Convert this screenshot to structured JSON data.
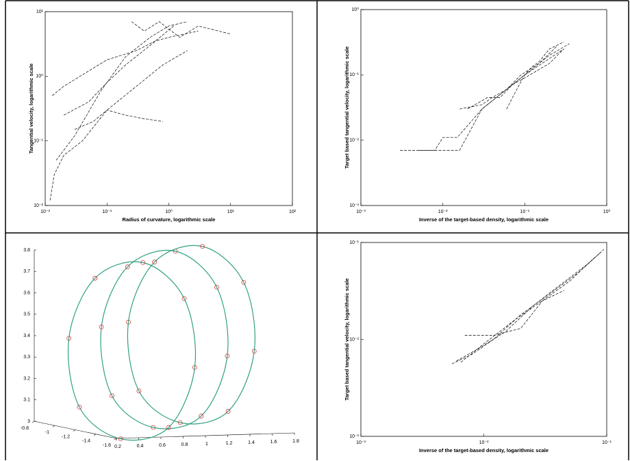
{
  "chart_data": [
    {
      "type": "line",
      "log_x": true,
      "log_y": true,
      "color": "#000000",
      "xlabel": "Radius of curvature, logarithmic scale",
      "ylabel": "Tangential velocity, logarithmic scale",
      "xlim": [
        0.01,
        100
      ],
      "ylim": [
        0.01,
        10
      ],
      "xticks": [
        {
          "value": 0.01,
          "label": "10⁻²"
        },
        {
          "value": 0.1,
          "label": "10⁻¹"
        },
        {
          "value": 1,
          "label": "10⁰"
        },
        {
          "value": 10,
          "label": "10¹"
        },
        {
          "value": 100,
          "label": "10²"
        }
      ],
      "yticks": [
        {
          "value": 0.01,
          "label": "10⁻²"
        },
        {
          "value": 0.1,
          "label": "10⁻¹"
        },
        {
          "value": 1,
          "label": "10⁰"
        },
        {
          "value": 10,
          "label": "10¹"
        }
      ],
      "series": [
        {
          "x": [
            0.012,
            0.014,
            0.02,
            0.04,
            0.1,
            0.3,
            0.8,
            2
          ],
          "values": [
            0.012,
            0.03,
            0.06,
            0.1,
            0.3,
            0.7,
            1.5,
            2.5
          ]
        },
        {
          "x": [
            0.013,
            0.02,
            0.05,
            0.1,
            0.3,
            0.6,
            1,
            3
          ],
          "values": [
            0.5,
            0.7,
            1.2,
            1.8,
            2.5,
            3.5,
            4,
            5
          ]
        },
        {
          "x": [
            0.02,
            0.05,
            0.1,
            0.2,
            0.5,
            1.2
          ],
          "values": [
            0.25,
            0.4,
            0.8,
            1.5,
            3,
            6
          ]
        },
        {
          "x": [
            0.03,
            0.06,
            0.1,
            0.2,
            0.4,
            0.8
          ],
          "values": [
            0.15,
            0.2,
            0.3,
            0.25,
            0.22,
            0.2
          ]
        },
        {
          "x": [
            0.015,
            0.03,
            0.08,
            0.2,
            0.5,
            1,
            2
          ],
          "values": [
            0.05,
            0.12,
            0.6,
            2,
            4,
            6,
            7
          ]
        },
        {
          "x": [
            0.25,
            0.4,
            0.7,
            1.5,
            3,
            10
          ],
          "values": [
            7,
            5,
            7,
            4,
            6,
            4.5
          ]
        }
      ]
    },
    {
      "type": "line",
      "log_x": true,
      "log_y": true,
      "color": "#000000",
      "xlabel": "Inverse of the target-based density, logarithmic scale",
      "ylabel": "Target based tangential velocity, logarithmic scale",
      "xlim": [
        0.001,
        1
      ],
      "ylim": [
        0.001,
        1
      ],
      "xticks": [
        {
          "value": 0.001,
          "label": "10⁻³"
        },
        {
          "value": 0.01,
          "label": "10⁻²"
        },
        {
          "value": 0.1,
          "label": "10⁻¹"
        },
        {
          "value": 1,
          "label": "10⁰"
        }
      ],
      "yticks": [
        {
          "value": 0.001,
          "label": "10⁻³"
        },
        {
          "value": 0.01,
          "label": "10⁻²"
        },
        {
          "value": 0.1,
          "label": "10⁻¹"
        },
        {
          "value": 1,
          "label": "10⁰"
        }
      ],
      "series": [
        {
          "x": [
            0.003,
            0.008,
            0.01,
            0.015,
            0.03,
            0.08,
            0.2,
            0.35
          ],
          "values": [
            0.007,
            0.007,
            0.011,
            0.011,
            0.03,
            0.08,
            0.2,
            0.3
          ]
        },
        {
          "x": [
            0.005,
            0.016,
            0.03,
            0.05,
            0.1,
            0.3
          ],
          "values": [
            0.007,
            0.007,
            0.03,
            0.05,
            0.1,
            0.25
          ]
        },
        {
          "x": [
            0.016,
            0.03,
            0.04,
            0.06,
            0.09,
            0.15,
            0.25
          ],
          "values": [
            0.03,
            0.035,
            0.045,
            0.06,
            0.1,
            0.15,
            0.28
          ]
        },
        {
          "x": [
            0.02,
            0.035,
            0.05,
            0.07,
            0.1,
            0.2,
            0.3
          ],
          "values": [
            0.03,
            0.045,
            0.045,
            0.07,
            0.09,
            0.15,
            0.25
          ]
        },
        {
          "x": [
            0.06,
            0.08,
            0.1,
            0.12,
            0.15,
            0.2,
            0.3
          ],
          "values": [
            0.03,
            0.06,
            0.1,
            0.13,
            0.16,
            0.25,
            0.32
          ]
        }
      ]
    },
    {
      "type": "scatter3d",
      "color": "#30a080",
      "marker_color": "#d04040",
      "xlim": [
        0.2,
        1.8
      ],
      "ylim": [
        -1.6,
        -0.8
      ],
      "zlim": [
        3,
        3.8
      ],
      "xticks": [
        0.2,
        0.4,
        0.6,
        0.8,
        1,
        1.2,
        1.4,
        1.6,
        1.8
      ],
      "yticks": [
        -0.8,
        -1,
        -1.2,
        -1.4,
        -1.6
      ],
      "zticks": [
        3,
        3.1,
        3.2,
        3.3,
        3.4,
        3.5,
        3.6,
        3.7,
        3.8
      ],
      "series": [
        {
          "x": [
            1.75,
            1.6,
            1.1,
            0.54,
            0.25,
            0.4,
            0.9,
            1.46
          ],
          "y": [
            -1,
            -1.06,
            -1.2,
            -1.34,
            -1.4,
            -1.34,
            -1.2,
            -1.06
          ],
          "values": [
            3.3,
            3.63,
            3.82,
            3.77,
            3.5,
            3.17,
            3,
            3.03
          ]
        },
        {
          "x": [
            1.55,
            1.4,
            0.9,
            0.34,
            0.05,
            0.2,
            0.7,
            1.26
          ],
          "y": [
            -0.9,
            -0.96,
            -1.1,
            -1.24,
            -1.3,
            -1.24,
            -1.1,
            -0.96
          ],
          "values": [
            3.24,
            3.57,
            3.76,
            3.71,
            3.44,
            3.11,
            2.94,
            2.97
          ]
        },
        {
          "x": [
            1.9,
            1.75,
            1.25,
            0.69,
            0.4,
            0.55,
            1.05,
            1.61
          ],
          "y": [
            -1.1,
            -1.16,
            -1.3,
            -1.44,
            -1.5,
            -1.44,
            -1.3,
            -1.16
          ],
          "values": [
            3.33,
            3.66,
            3.85,
            3.8,
            3.53,
            3.2,
            3.03,
            3.06
          ]
        }
      ]
    },
    {
      "type": "line",
      "log_x": true,
      "log_y": true,
      "color": "#000000",
      "xlabel": "Inverse of the target-based density, logarithmic scale",
      "ylabel": "Target based tangential velocity, logarithmic scale",
      "xlim": [
        0.001,
        0.1
      ],
      "ylim": [
        0.001,
        0.1
      ],
      "xticks": [
        {
          "value": 0.001,
          "label": "10⁻³"
        },
        {
          "value": 0.01,
          "label": "10⁻²"
        },
        {
          "value": 0.1,
          "label": "10⁻¹"
        }
      ],
      "yticks": [
        {
          "value": 0.001,
          "label": "10⁻³"
        },
        {
          "value": 0.01,
          "label": "10⁻²"
        },
        {
          "value": 0.1,
          "label": "10⁻¹"
        }
      ],
      "series": [
        {
          "x": [
            0.0055,
            0.008,
            0.012,
            0.02,
            0.035,
            0.06,
            0.095
          ],
          "values": [
            0.0056,
            0.007,
            0.01,
            0.018,
            0.03,
            0.05,
            0.085
          ]
        },
        {
          "x": [
            0.006,
            0.009,
            0.015,
            0.025,
            0.04,
            0.07,
            0.09
          ],
          "values": [
            0.006,
            0.008,
            0.012,
            0.022,
            0.035,
            0.06,
            0.08
          ]
        },
        {
          "x": [
            0.0065,
            0.01,
            0.018,
            0.03,
            0.05,
            0.08
          ],
          "values": [
            0.0058,
            0.009,
            0.016,
            0.025,
            0.04,
            0.07
          ]
        },
        {
          "x": [
            0.007,
            0.012,
            0.02,
            0.03,
            0.045
          ],
          "values": [
            0.011,
            0.011,
            0.013,
            0.025,
            0.032
          ]
        }
      ]
    }
  ]
}
